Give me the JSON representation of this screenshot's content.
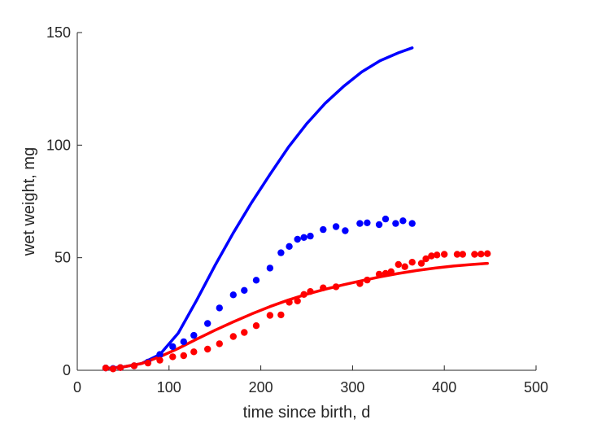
{
  "chart_data": {
    "type": "scatter",
    "title": "",
    "xlabel": "time since birth, d",
    "ylabel": "wet weight, mg",
    "xlim": [
      0,
      500
    ],
    "ylim": [
      0,
      150
    ],
    "xticks": [
      0,
      100,
      200,
      300,
      400,
      500
    ],
    "yticks": [
      0,
      50,
      100,
      150
    ],
    "xtick_labels": [
      "0",
      "100",
      "200",
      "300",
      "400",
      "500"
    ],
    "ytick_labels": [
      "0",
      "50",
      "100",
      "150"
    ],
    "grid": false,
    "legend": "none",
    "series": [
      {
        "kind": "points",
        "color": "#0000ff",
        "x": [
          31,
          39,
          47,
          62,
          77,
          90,
          104,
          116,
          127,
          142,
          155,
          170,
          182,
          195,
          210,
          222,
          231,
          240,
          247,
          254,
          268,
          282,
          292,
          308,
          316,
          329,
          336,
          347,
          355,
          365
        ],
        "y": [
          1.0,
          0.8,
          1.2,
          2.0,
          3.6,
          7.0,
          10.5,
          12.7,
          15.5,
          20.8,
          27.7,
          33.5,
          35.5,
          40.0,
          45.4,
          52.2,
          55.0,
          58.2,
          59.0,
          59.6,
          62.5,
          63.8,
          62.0,
          65.2,
          65.5,
          64.7,
          67.2,
          65.2,
          66.4,
          65.2
        ]
      },
      {
        "kind": "curve",
        "color": "#0000ff",
        "x": [
          31,
          50,
          70,
          90,
          110,
          130,
          150,
          170,
          190,
          210,
          230,
          250,
          270,
          290,
          310,
          330,
          350,
          365
        ],
        "y": [
          0.8,
          1.5,
          3.0,
          7.0,
          16.5,
          31.0,
          46.5,
          61.0,
          74.5,
          87.0,
          99.0,
          109.5,
          118.5,
          126.0,
          132.5,
          137.5,
          141.0,
          143.2
        ]
      },
      {
        "kind": "points",
        "color": "#ff0000",
        "x": [
          31,
          39,
          47,
          62,
          77,
          90,
          104,
          116,
          127,
          142,
          155,
          170,
          182,
          195,
          210,
          222,
          231,
          240,
          247,
          254,
          268,
          282,
          308,
          316,
          329,
          336,
          342,
          350,
          357,
          365,
          375,
          380,
          386,
          392,
          400,
          414,
          420,
          433,
          440,
          447
        ],
        "y": [
          1.0,
          0.6,
          1.2,
          2.0,
          3.2,
          4.5,
          6.0,
          6.5,
          8.2,
          9.4,
          11.8,
          15.0,
          16.8,
          19.8,
          24.4,
          24.6,
          30.2,
          30.8,
          33.7,
          35.0,
          36.6,
          37.1,
          38.5,
          40.1,
          42.7,
          43.0,
          43.8,
          47.0,
          46.0,
          48.0,
          47.5,
          49.5,
          50.8,
          51.2,
          51.5,
          51.5,
          51.5,
          51.5,
          51.6,
          51.8
        ]
      },
      {
        "kind": "curve",
        "color": "#ff0000",
        "x": [
          31,
          50,
          70,
          90,
          110,
          130,
          150,
          170,
          190,
          210,
          230,
          250,
          270,
          290,
          310,
          330,
          350,
          370,
          390,
          410,
          430,
          447
        ],
        "y": [
          0.8,
          1.5,
          3.0,
          6.0,
          9.7,
          13.8,
          17.8,
          21.5,
          25.0,
          28.3,
          31.2,
          33.8,
          36.0,
          38.0,
          39.8,
          41.5,
          43.0,
          44.3,
          45.4,
          46.3,
          47.0,
          47.5
        ]
      }
    ]
  }
}
